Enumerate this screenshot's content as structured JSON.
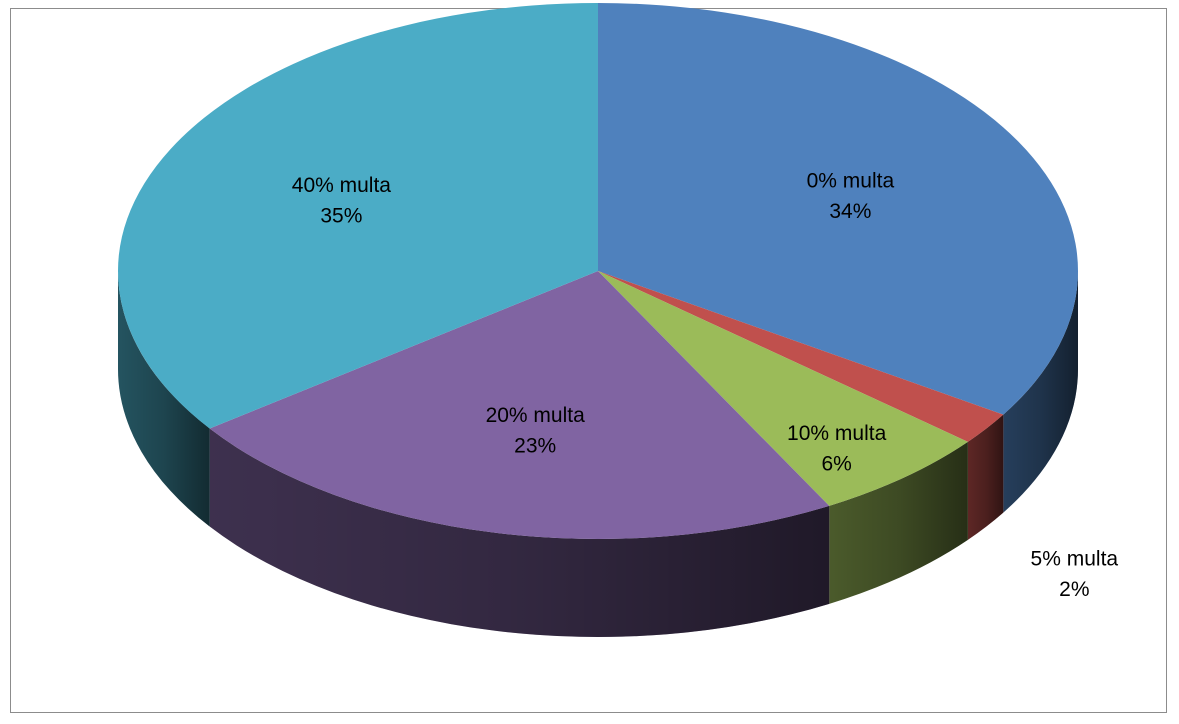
{
  "chart_data": {
    "type": "pie",
    "style": "3d",
    "start": "twelve-o-clock",
    "direction": "clockwise",
    "slices": [
      {
        "name": "0% multa",
        "value": 34,
        "label": "34%",
        "color": "#4F81BD"
      },
      {
        "name": "5% multa",
        "value": 2,
        "label": "2%",
        "color": "#C0504D"
      },
      {
        "name": "10% multa",
        "value": 6,
        "label": "6%",
        "color": "#9BBB59"
      },
      {
        "name": "20% multa",
        "value": 23,
        "label": "23%",
        "color": "#8064A2"
      },
      {
        "name": "40% multa",
        "value": 35,
        "label": "35%",
        "color": "#4BACC6"
      }
    ],
    "legend": "none"
  }
}
